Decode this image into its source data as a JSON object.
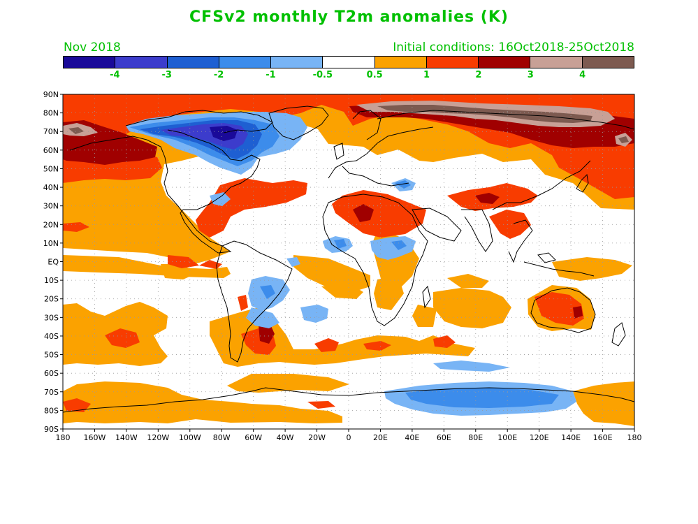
{
  "title": "CFSv2 monthly T2m anomalies (K)",
  "month": "Nov 2018",
  "initial_conditions": "Initial conditions: 16Oct2018-25Oct2018",
  "colorbar": {
    "colors": [
      "#1a0a99",
      "#3c3ccc",
      "#1e5fd2",
      "#3c8ceb",
      "#78b4f5",
      "#ffffff",
      "#fba200",
      "#f83c00",
      "#a00000",
      "#c8a096",
      "#7d5a50"
    ],
    "labels": [
      "-4",
      "-3",
      "-2",
      "-1",
      "-0.5",
      "0.5",
      "1",
      "2",
      "3",
      "4"
    ]
  },
  "axes": {
    "lat_labels": [
      "90N",
      "80N",
      "70N",
      "60N",
      "50N",
      "40N",
      "30N",
      "20N",
      "10N",
      "EQ",
      "10S",
      "20S",
      "30S",
      "40S",
      "50S",
      "60S",
      "70S",
      "80S",
      "90S"
    ],
    "lon_labels": [
      "180",
      "160W",
      "140W",
      "120W",
      "100W",
      "80W",
      "60W",
      "40W",
      "20W",
      "0",
      "20E",
      "40E",
      "60E",
      "80E",
      "100E",
      "120E",
      "140E",
      "160E",
      "180"
    ]
  },
  "map": {
    "projection": "cylindrical equidistant",
    "domain": "global",
    "field": "2 m temperature anomaly",
    "units": "K",
    "grid": "dotted at 10 degrees"
  }
}
